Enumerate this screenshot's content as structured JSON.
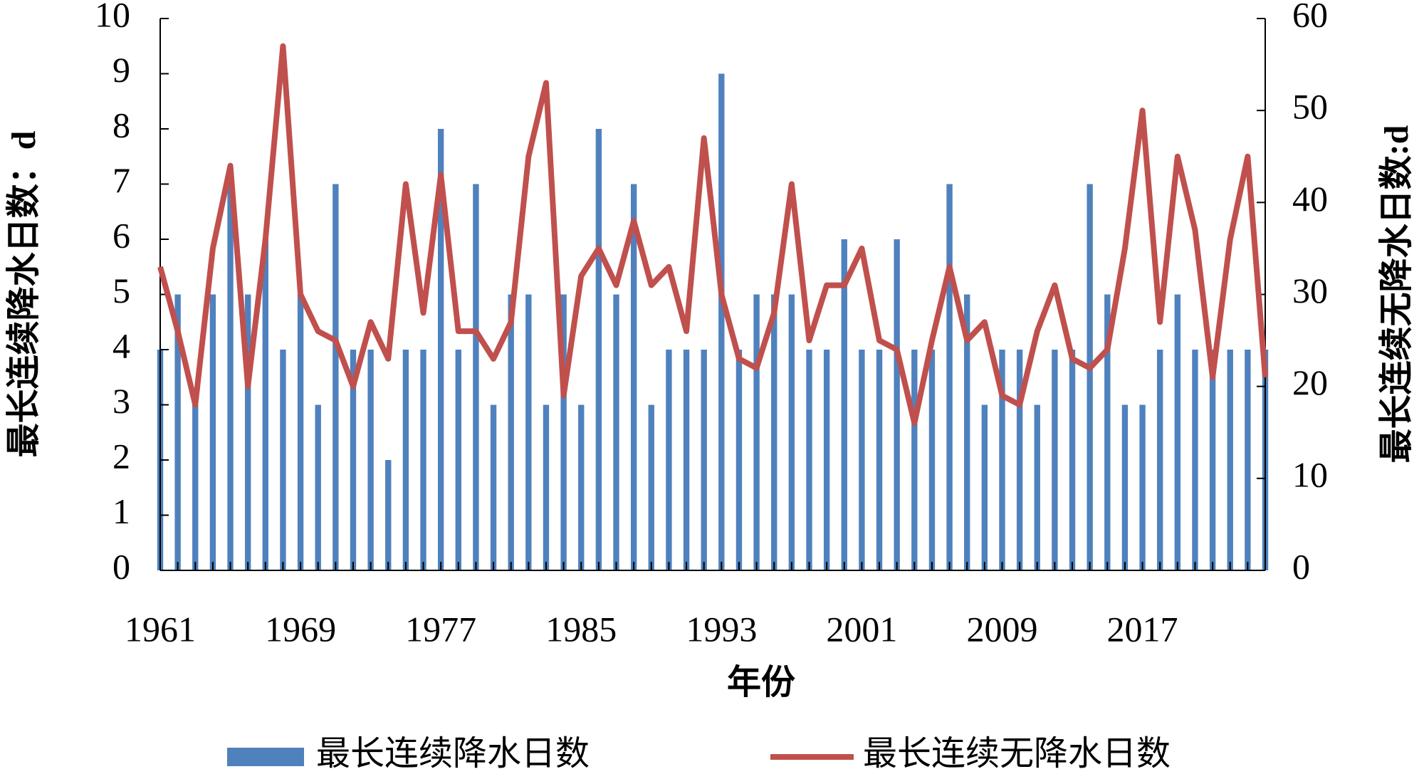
{
  "chart_data": {
    "type": "combo",
    "x_label": "年份",
    "y_label": "最长连续降水日数：d",
    "y2_label": "最长连续无降水日数:d",
    "categories": [
      "1961",
      null,
      null,
      null,
      null,
      null,
      null,
      null,
      "1969",
      null,
      null,
      null,
      null,
      null,
      null,
      null,
      "1977",
      null,
      null,
      null,
      null,
      null,
      null,
      null,
      "1985",
      null,
      null,
      null,
      null,
      null,
      null,
      null,
      "1993",
      null,
      null,
      null,
      null,
      null,
      null,
      null,
      "2001",
      null,
      null,
      null,
      null,
      null,
      null,
      null,
      "2009",
      null,
      null,
      null,
      null,
      null,
      null,
      null,
      "2017",
      null,
      null,
      null,
      null,
      null,
      null,
      null
    ],
    "series": [
      {
        "name": "最长连续降水日数",
        "type": "bar",
        "axis": "y",
        "color": "#4f81bd",
        "values": [
          4,
          5,
          3,
          5,
          7,
          5,
          6,
          4,
          5,
          3,
          7,
          4,
          4,
          2,
          4,
          4,
          8,
          4,
          7,
          3,
          5,
          5,
          3,
          5,
          3,
          8,
          5,
          7,
          3,
          4,
          4,
          4,
          9,
          4,
          5,
          5,
          5,
          4,
          4,
          6,
          4,
          4,
          6,
          4,
          4,
          7,
          5,
          3,
          4,
          4,
          3,
          4,
          4,
          7,
          5,
          3,
          3,
          4,
          5,
          4,
          4,
          4,
          4,
          4
        ]
      },
      {
        "name": "最长连续无降水日数",
        "type": "line",
        "axis": "y2",
        "color": "#c0504d",
        "values": [
          33,
          26,
          18,
          35,
          44,
          20,
          36,
          57,
          30,
          26,
          25,
          20,
          27,
          23,
          42,
          28,
          43,
          26,
          26,
          23,
          27,
          45,
          53,
          19,
          32,
          35,
          31,
          38,
          31,
          33,
          26,
          47,
          30,
          23,
          22,
          28,
          42,
          25,
          31,
          31,
          35,
          25,
          24,
          16,
          25,
          33,
          25,
          27,
          19,
          18,
          26,
          31,
          23,
          22,
          24,
          35,
          50,
          27,
          45,
          37,
          21,
          36,
          45,
          21
        ]
      }
    ],
    "ylim": [
      0,
      10
    ],
    "yticks": [
      0,
      1,
      2,
      3,
      4,
      5,
      6,
      7,
      8,
      9,
      10
    ],
    "y2lim": [
      0,
      60
    ],
    "y2ticks": [
      0,
      10,
      20,
      30,
      40,
      50,
      60
    ],
    "legend": "bottom"
  }
}
